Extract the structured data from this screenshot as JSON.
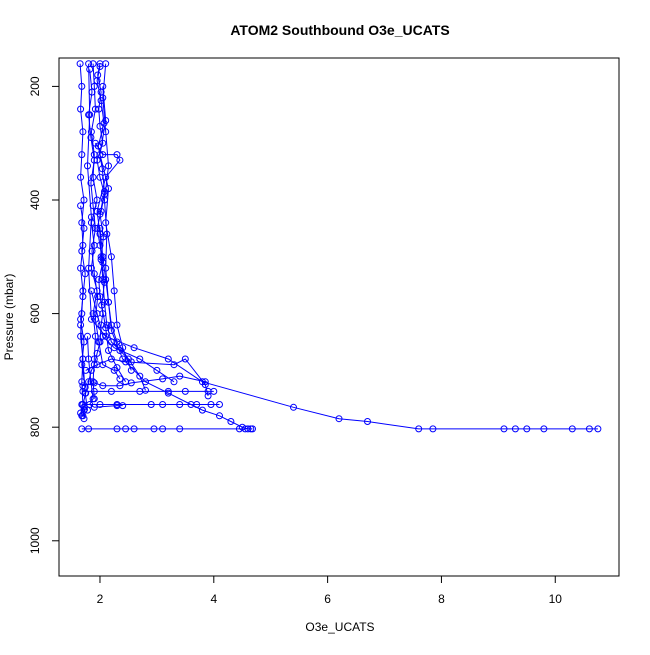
{
  "chart_data": {
    "type": "scatter",
    "title": "ATOM2 Southbound O3e_UCATS",
    "xlabel": "O3e_UCATS",
    "ylabel": "Pressure (mbar)",
    "xlim": [
      1.28,
      11.12
    ],
    "ylim": [
      1062,
      150
    ],
    "y_reversed": true,
    "grid": false,
    "x_ticks": [
      2,
      4,
      6,
      8,
      10
    ],
    "y_ticks": [
      200,
      400,
      600,
      800,
      1000
    ],
    "marker": "open-circle",
    "line_connected": true,
    "color": "#0000ff",
    "series": [
      {
        "points": [
          [
            1.72,
            785
          ],
          [
            1.72,
            770
          ],
          [
            1.7,
            760
          ],
          [
            1.75,
            740
          ],
          [
            1.8,
            720
          ],
          [
            1.85,
            700
          ],
          [
            1.9,
            690
          ],
          [
            1.95,
            670
          ],
          [
            2.0,
            650
          ],
          [
            2.02,
            620
          ],
          [
            2.05,
            600
          ],
          [
            2.0,
            570
          ],
          [
            1.98,
            540
          ],
          [
            2.05,
            510
          ],
          [
            2.0,
            480
          ],
          [
            1.95,
            450
          ],
          [
            2.02,
            420
          ],
          [
            2.08,
            390
          ],
          [
            2.0,
            360
          ],
          [
            1.95,
            330
          ],
          [
            2.05,
            300
          ],
          [
            2.0,
            270
          ],
          [
            1.98,
            240
          ],
          [
            2.02,
            210
          ],
          [
            1.96,
            180
          ],
          [
            2.0,
            160
          ]
        ]
      },
      {
        "points": [
          [
            1.65,
            160
          ],
          [
            1.68,
            200
          ],
          [
            1.66,
            240
          ],
          [
            1.7,
            280
          ],
          [
            1.68,
            320
          ],
          [
            1.66,
            360
          ],
          [
            1.72,
            400
          ],
          [
            1.68,
            440
          ],
          [
            1.7,
            480
          ],
          [
            1.66,
            520
          ],
          [
            1.7,
            560
          ],
          [
            1.68,
            600
          ],
          [
            1.66,
            640
          ],
          [
            1.7,
            680
          ],
          [
            1.68,
            720
          ],
          [
            1.7,
            760
          ],
          [
            1.68,
            780
          ]
        ]
      },
      {
        "points": [
          [
            1.88,
            160
          ],
          [
            1.9,
            200
          ],
          [
            1.92,
            240
          ],
          [
            1.85,
            280
          ],
          [
            1.9,
            320
          ],
          [
            1.88,
            360
          ],
          [
            1.95,
            400
          ],
          [
            1.85,
            440
          ],
          [
            1.9,
            480
          ],
          [
            1.85,
            520
          ],
          [
            1.95,
            560
          ],
          [
            1.88,
            600
          ],
          [
            1.92,
            640
          ],
          [
            1.9,
            680
          ],
          [
            1.88,
            720
          ],
          [
            1.9,
            750
          ]
        ]
      },
      {
        "points": [
          [
            2.1,
            160
          ],
          [
            2.05,
            220
          ],
          [
            2.1,
            280
          ],
          [
            2.15,
            340
          ],
          [
            2.08,
            400
          ],
          [
            2.12,
            460
          ],
          [
            2.1,
            520
          ],
          [
            2.15,
            580
          ],
          [
            2.2,
            630
          ],
          [
            2.4,
            680
          ],
          [
            2.8,
            720
          ],
          [
            3.2,
            740
          ],
          [
            3.6,
            760
          ],
          [
            3.8,
            770
          ],
          [
            4.1,
            780
          ],
          [
            4.3,
            790
          ],
          [
            4.5,
            800
          ],
          [
            4.6,
            803
          ]
        ]
      },
      {
        "points": [
          [
            1.8,
            160
          ],
          [
            1.82,
            250
          ],
          [
            1.78,
            340
          ],
          [
            1.85,
            430
          ],
          [
            1.8,
            520
          ],
          [
            1.85,
            610
          ],
          [
            2.1,
            640
          ],
          [
            2.6,
            660
          ],
          [
            3.2,
            680
          ],
          [
            3.8,
            720
          ],
          [
            5.4,
            765
          ],
          [
            6.2,
            785
          ],
          [
            6.7,
            790
          ],
          [
            7.6,
            803
          ],
          [
            7.85,
            803
          ],
          [
            9.1,
            803
          ],
          [
            9.3,
            803
          ],
          [
            9.5,
            803
          ],
          [
            9.8,
            803
          ],
          [
            10.3,
            803
          ],
          [
            10.6,
            803
          ],
          [
            10.75,
            803
          ]
        ]
      },
      {
        "points": [
          [
            1.68,
            803
          ],
          [
            1.8,
            803
          ],
          [
            2.3,
            803
          ],
          [
            2.45,
            803
          ],
          [
            2.6,
            803
          ],
          [
            2.95,
            803
          ],
          [
            3.1,
            803
          ],
          [
            3.4,
            803
          ],
          [
            4.45,
            803
          ],
          [
            4.55,
            803
          ],
          [
            4.65,
            803
          ],
          [
            4.68,
            803
          ]
        ]
      },
      {
        "points": [
          [
            1.7,
            737
          ],
          [
            1.9,
            737
          ],
          [
            2.2,
            737
          ],
          [
            2.7,
            737
          ],
          [
            3.2,
            737
          ],
          [
            3.5,
            737
          ],
          [
            3.9,
            737
          ],
          [
            4.0,
            737
          ]
        ]
      },
      {
        "points": [
          [
            1.68,
            760
          ],
          [
            2.0,
            760
          ],
          [
            2.3,
            760
          ],
          [
            2.9,
            760
          ],
          [
            3.1,
            760
          ],
          [
            3.4,
            760
          ],
          [
            3.7,
            760
          ],
          [
            3.95,
            760
          ],
          [
            4.1,
            760
          ]
        ]
      },
      {
        "points": [
          [
            1.75,
            700
          ],
          [
            1.95,
            690
          ],
          [
            2.2,
            680
          ],
          [
            2.45,
            685
          ],
          [
            3.3,
            690
          ],
          [
            3.5,
            680
          ],
          [
            3.85,
            725
          ],
          [
            3.9,
            745
          ]
        ]
      },
      {
        "points": [
          [
            1.7,
            727
          ],
          [
            1.9,
            722
          ],
          [
            2.05,
            727
          ],
          [
            2.35,
            727
          ],
          [
            2.55,
            722
          ],
          [
            3.1,
            715
          ],
          [
            3.4,
            710
          ],
          [
            3.85,
            720
          ]
        ]
      },
      {
        "points": [
          [
            1.92,
            300
          ],
          [
            2.05,
            320
          ],
          [
            2.3,
            320
          ],
          [
            2.35,
            330
          ],
          [
            2.1,
            360
          ],
          [
            1.95,
            420
          ]
        ]
      },
      {
        "points": [
          [
            2.0,
            450
          ],
          [
            2.05,
            500
          ],
          [
            2.1,
            540
          ],
          [
            2.15,
            580
          ],
          [
            2.2,
            620
          ],
          [
            2.3,
            650
          ],
          [
            2.5,
            680
          ],
          [
            2.7,
            710
          ],
          [
            2.8,
            735
          ]
        ]
      },
      {
        "points": [
          [
            1.95,
            420
          ],
          [
            2.0,
            460
          ],
          [
            2.02,
            500
          ],
          [
            2.05,
            540
          ],
          [
            2.08,
            580
          ],
          [
            2.12,
            620
          ],
          [
            2.2,
            650
          ],
          [
            2.35,
            665
          ],
          [
            2.55,
            685
          ]
        ]
      },
      {
        "points": [
          [
            1.85,
            560
          ],
          [
            1.95,
            600
          ],
          [
            2.05,
            640
          ],
          [
            2.25,
            660
          ],
          [
            2.7,
            680
          ],
          [
            3.0,
            700
          ],
          [
            3.3,
            720
          ]
        ]
      },
      {
        "points": [
          [
            2.05,
            200
          ],
          [
            2.1,
            260
          ],
          [
            2.0,
            320
          ],
          [
            2.15,
            380
          ],
          [
            2.1,
            440
          ],
          [
            2.2,
            500
          ],
          [
            2.25,
            560
          ],
          [
            2.3,
            620
          ],
          [
            2.4,
            660
          ],
          [
            2.55,
            700
          ]
        ]
      },
      {
        "points": [
          [
            1.66,
            410
          ],
          [
            1.72,
            450
          ],
          [
            1.68,
            490
          ],
          [
            1.74,
            530
          ],
          [
            1.7,
            570
          ],
          [
            1.66,
            610
          ],
          [
            1.72,
            650
          ],
          [
            1.68,
            690
          ],
          [
            1.74,
            730
          ]
        ]
      },
      {
        "points": [
          [
            1.82,
            170
          ],
          [
            1.86,
            210
          ],
          [
            1.8,
            250
          ],
          [
            1.84,
            290
          ],
          [
            1.9,
            330
          ],
          [
            1.84,
            370
          ],
          [
            1.88,
            410
          ],
          [
            1.92,
            450
          ],
          [
            1.86,
            490
          ],
          [
            1.9,
            530
          ],
          [
            1.96,
            570
          ],
          [
            1.92,
            610
          ],
          [
            1.98,
            650
          ],
          [
            2.05,
            690
          ],
          [
            2.25,
            700
          ],
          [
            2.35,
            715
          ]
        ]
      },
      {
        "points": [
          [
            2.0,
            165
          ],
          [
            1.95,
            190
          ],
          [
            2.02,
            225
          ],
          [
            2.07,
            265
          ],
          [
            1.97,
            305
          ],
          [
            2.04,
            345
          ],
          [
            2.08,
            385
          ],
          [
            2.0,
            425
          ],
          [
            2.06,
            465
          ],
          [
            2.02,
            505
          ],
          [
            2.08,
            545
          ],
          [
            2.03,
            585
          ],
          [
            2.1,
            625
          ],
          [
            2.15,
            665
          ],
          [
            2.3,
            695
          ],
          [
            2.45,
            720
          ]
        ]
      },
      {
        "points": [
          [
            1.66,
            620
          ],
          [
            1.7,
            680
          ],
          [
            1.74,
            740
          ],
          [
            1.78,
            770
          ],
          [
            1.7,
            780
          ],
          [
            1.66,
            775
          ],
          [
            1.72,
            765
          ]
        ]
      },
      {
        "points": [
          [
            1.78,
            640
          ],
          [
            1.8,
            680
          ],
          [
            1.84,
            720
          ],
          [
            1.88,
            750
          ],
          [
            1.82,
            760
          ],
          [
            1.9,
            765
          ],
          [
            2.3,
            762
          ],
          [
            2.4,
            762
          ]
        ]
      }
    ]
  }
}
